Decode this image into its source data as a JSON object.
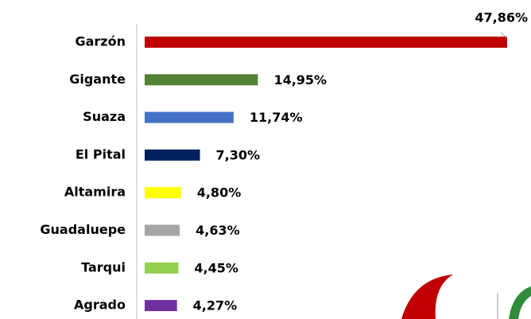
{
  "chart_data": {
    "type": "bar",
    "orientation": "horizontal",
    "categories": [
      "Garzón",
      "Gigante",
      "Suaza",
      "El Pital",
      "Altamira",
      "Guadaluepe",
      "Tarqui",
      "Agrado"
    ],
    "values": [
      47.86,
      14.95,
      11.74,
      7.3,
      4.8,
      4.63,
      4.45,
      4.27
    ],
    "value_labels": [
      "47,86%",
      "14,95%",
      "11,74%",
      "7,30%",
      "4,80%",
      "4,63%",
      "4,45%",
      "4,27%"
    ],
    "colors": [
      "#c00000",
      "#548235",
      "#4472c4",
      "#002060",
      "#ffff00",
      "#a5a5a5",
      "#92d050",
      "#7030a0"
    ]
  }
}
